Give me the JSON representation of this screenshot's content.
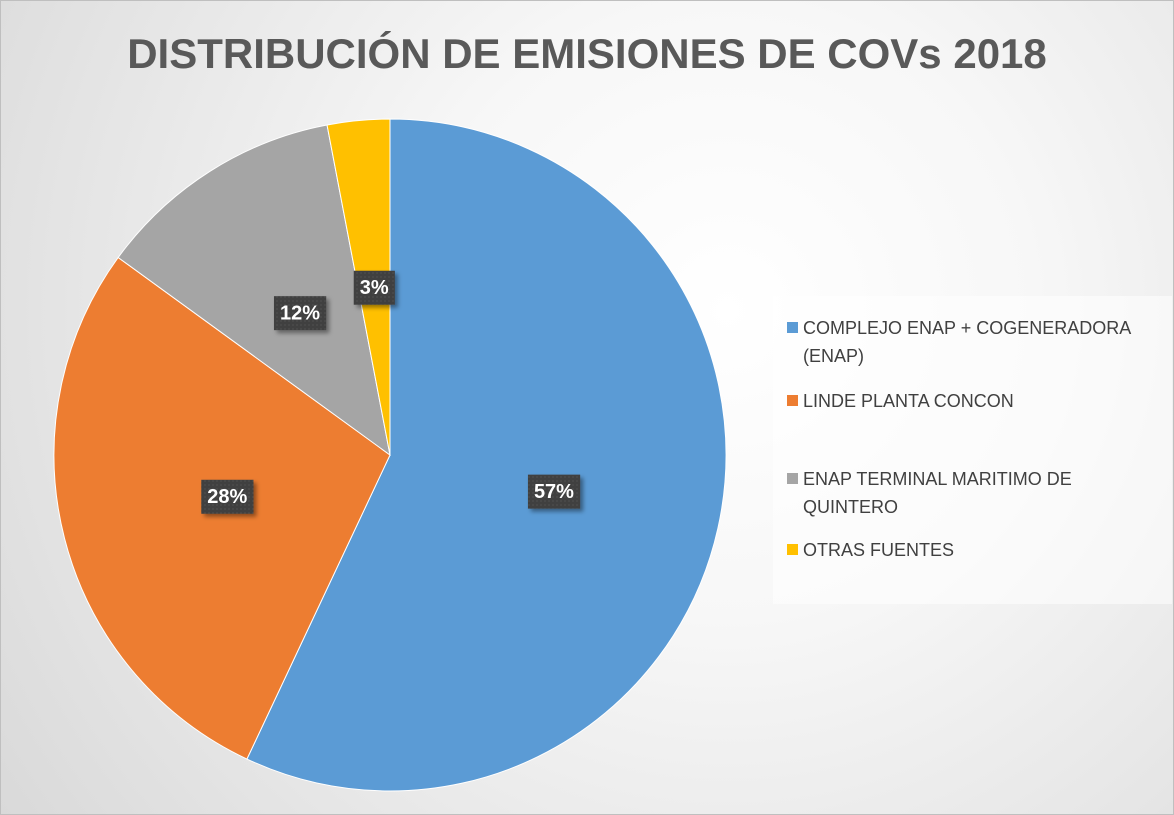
{
  "chart_data": {
    "type": "pie",
    "title": "DISTRIBUCIÓN DE EMISIONES DE COVs 2018",
    "categories": [
      "COMPLEJO ENAP + COGENERADORA (ENAP)",
      "LINDE PLANTA CONCON",
      "ENAP TERMINAL MARITIMO DE QUINTERO",
      "OTRAS FUENTES"
    ],
    "values": [
      57,
      28,
      12,
      3
    ],
    "value_labels": [
      "57%",
      "28%",
      "12%",
      "3%"
    ],
    "colors": [
      "#5b9bd5",
      "#ed7d31",
      "#a5a5a5",
      "#ffc000"
    ],
    "legend": "right"
  }
}
